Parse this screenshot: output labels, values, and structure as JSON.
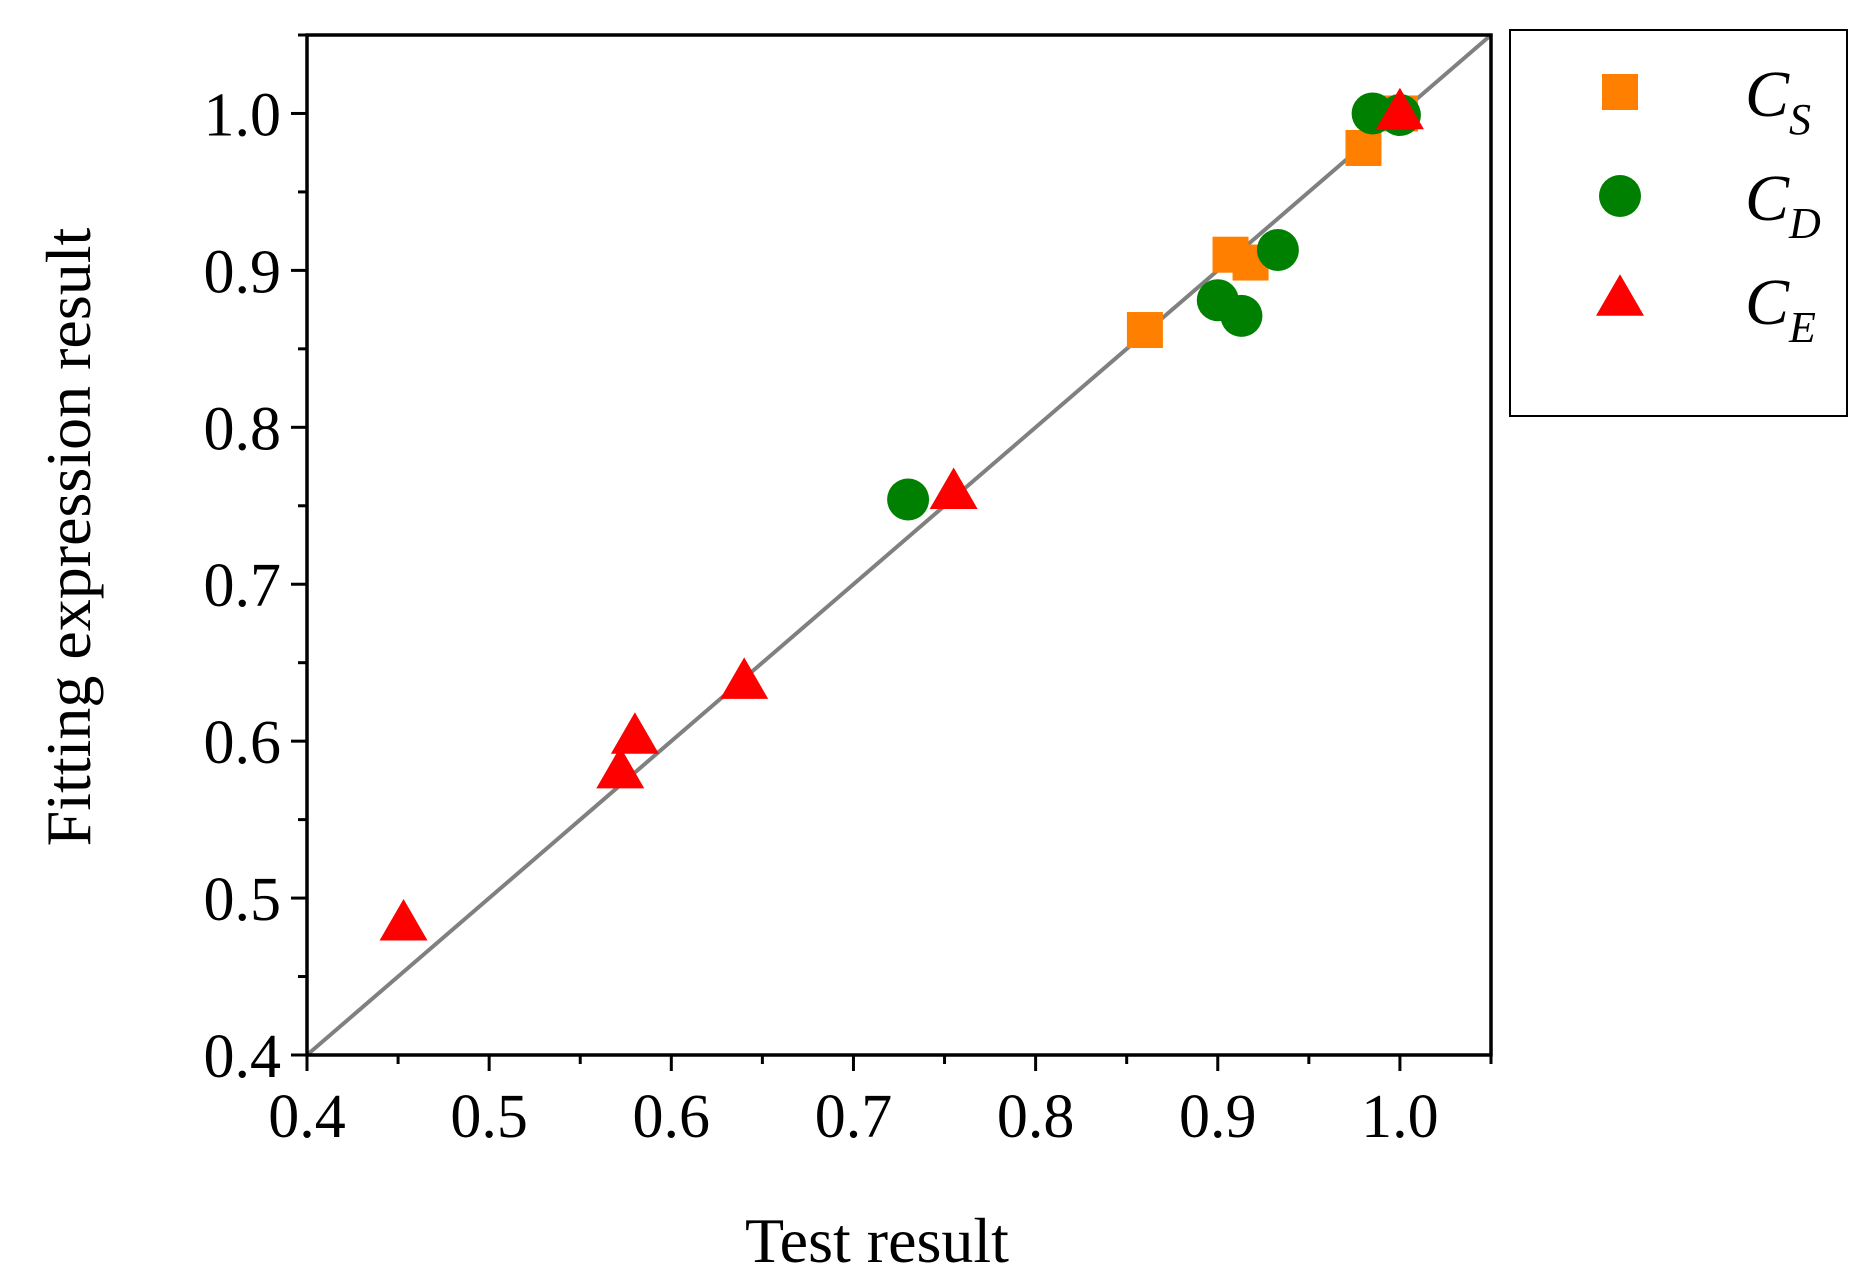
{
  "chart_data": {
    "type": "scatter",
    "xlabel": "Test result",
    "ylabel": "Fitting expression result",
    "xlim": [
      0.4,
      1.05
    ],
    "ylim": [
      0.4,
      1.05
    ],
    "x_ticks": [
      "0.4",
      "0.5",
      "0.6",
      "0.7",
      "0.8",
      "0.9",
      "1.0"
    ],
    "y_ticks": [
      "0.4",
      "0.5",
      "0.6",
      "0.7",
      "0.8",
      "0.9",
      "1.0"
    ],
    "reference_line": {
      "from": [
        0.4,
        0.4
      ],
      "to": [
        1.05,
        1.05
      ],
      "color": "#808080"
    },
    "grid": false,
    "legend_position": "outside-top-right",
    "series": [
      {
        "name": "C_S",
        "legend_main": "C",
        "legend_sub": "S",
        "marker": "square",
        "color": "#FF8000",
        "points": [
          [
            0.86,
            0.862
          ],
          [
            0.907,
            0.91
          ],
          [
            0.918,
            0.905
          ],
          [
            0.98,
            0.978
          ],
          [
            1.0,
            1.0
          ]
        ]
      },
      {
        "name": "C_D",
        "legend_main": "C",
        "legend_sub": "D",
        "marker": "circle",
        "color": "#008000",
        "points": [
          [
            0.73,
            0.754
          ],
          [
            0.9,
            0.881
          ],
          [
            0.913,
            0.871
          ],
          [
            0.933,
            0.913
          ],
          [
            0.985,
            1.0
          ],
          [
            1.0,
            0.999
          ]
        ]
      },
      {
        "name": "C_E",
        "legend_main": "C",
        "legend_sub": "E",
        "marker": "triangle",
        "color": "#FF0000",
        "points": [
          [
            0.453,
            0.483
          ],
          [
            0.572,
            0.58
          ],
          [
            0.58,
            0.602
          ],
          [
            0.64,
            0.637
          ],
          [
            0.755,
            0.758
          ],
          [
            1.0,
            1.0
          ]
        ]
      }
    ]
  }
}
